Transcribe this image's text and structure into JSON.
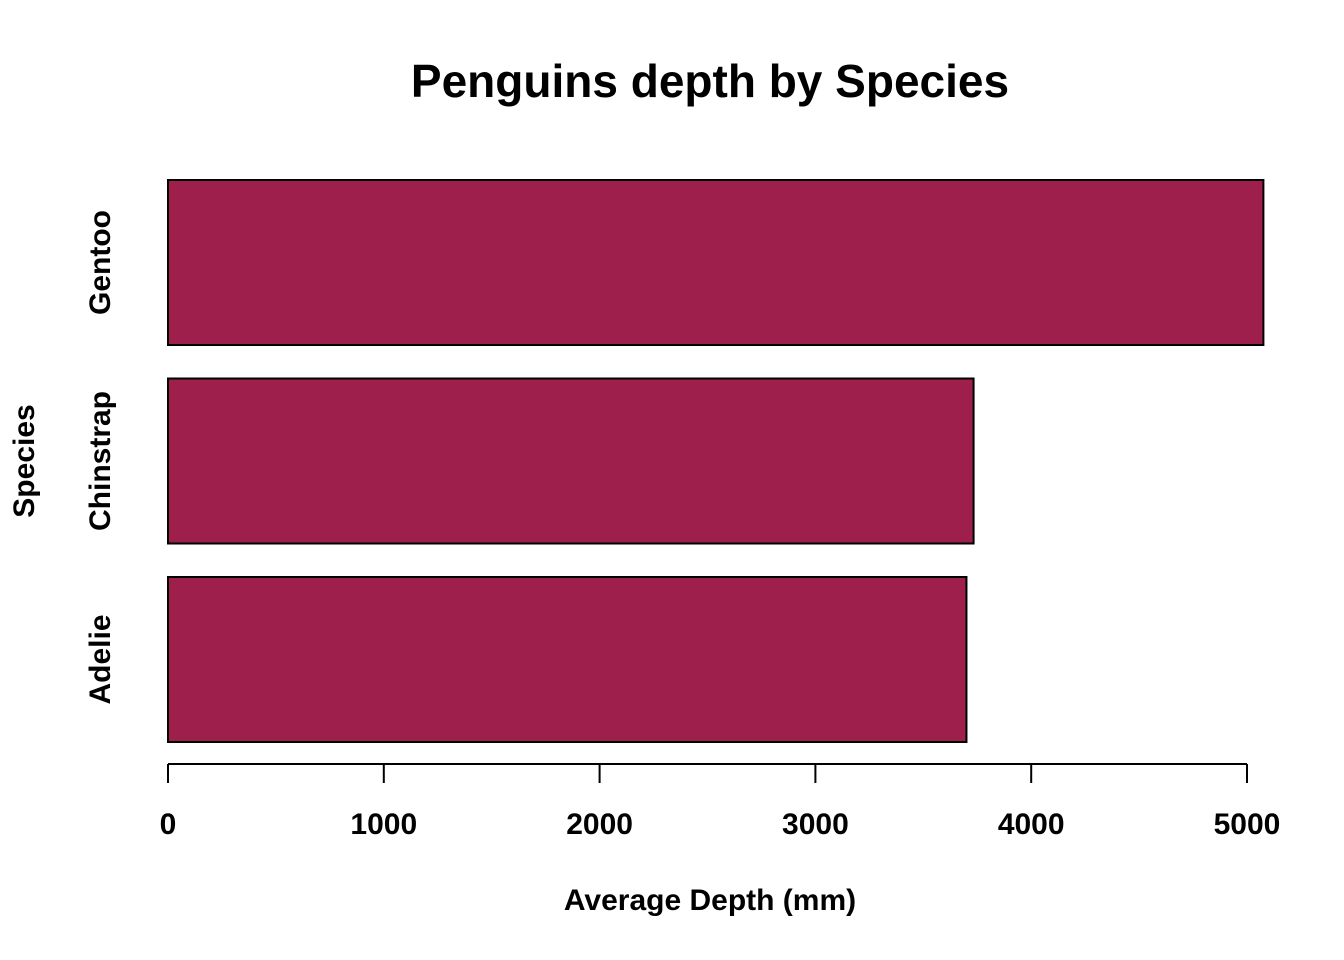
{
  "chart_data": {
    "type": "bar",
    "orientation": "horizontal",
    "title": "Penguins depth by Species",
    "xlabel": "Average Depth (mm)",
    "ylabel": "Species",
    "categories": [
      "Adelie",
      "Chinstrap",
      "Gentoo"
    ],
    "values": [
      3700,
      3733,
      5076
    ],
    "xlim": [
      0,
      5000
    ],
    "xticks": [
      "0",
      "1000",
      "2000",
      "3000",
      "4000",
      "5000"
    ],
    "xtick_values": [
      0,
      1000,
      2000,
      3000,
      4000,
      5000
    ],
    "bar_color": "#9E1E4C",
    "bar_border_color": "#000000",
    "grid": false,
    "legend": "none"
  }
}
